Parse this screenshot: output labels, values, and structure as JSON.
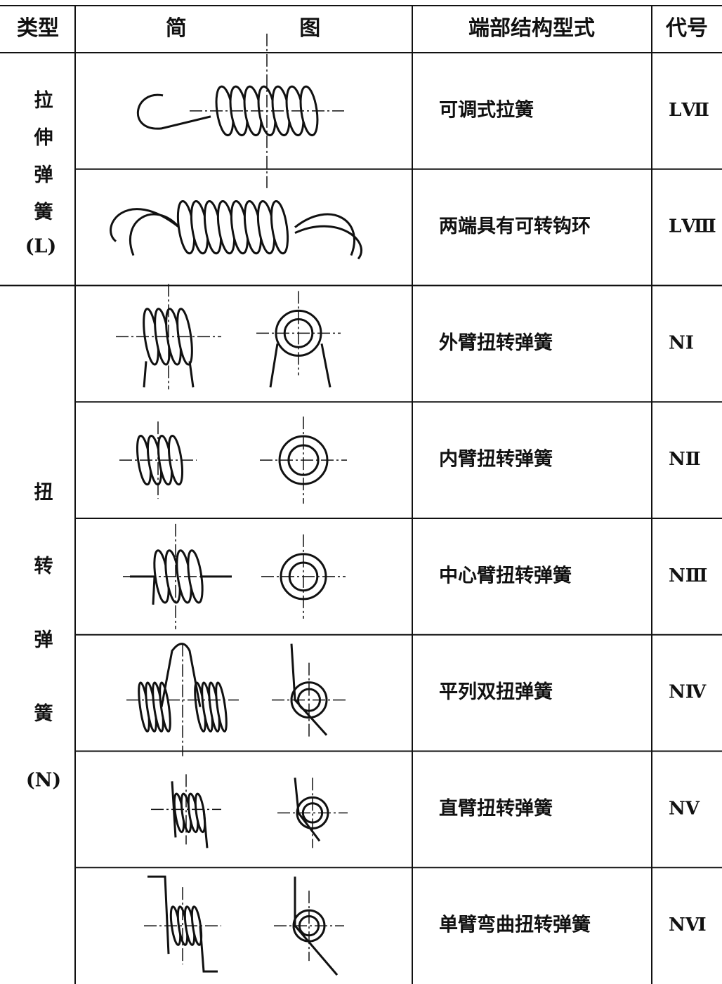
{
  "table": {
    "header": [
      "类型",
      "简 图",
      "端部结构型式",
      "代号"
    ],
    "groups": [
      {
        "name": "拉伸弹簧",
        "code": "(L)"
      },
      {
        "name": "扭转弹簧",
        "code": "(N)"
      }
    ],
    "rows": [
      [
        "可调式拉簧",
        "LⅦ"
      ],
      [
        "两端具有可转钩环",
        "LⅧ"
      ],
      [
        "外臂扭转弹簧",
        "NⅠ"
      ],
      [
        "内臂扭转弹簧",
        "NⅡ"
      ],
      [
        "中心臂扭转弹簧",
        "NⅢ"
      ],
      [
        "平列双扭弹簧",
        "NⅣ"
      ],
      [
        "直臂扭转弹簧",
        "NⅤ"
      ],
      [
        "单臂弯曲扭转弹簧",
        "NⅥ"
      ]
    ]
  }
}
